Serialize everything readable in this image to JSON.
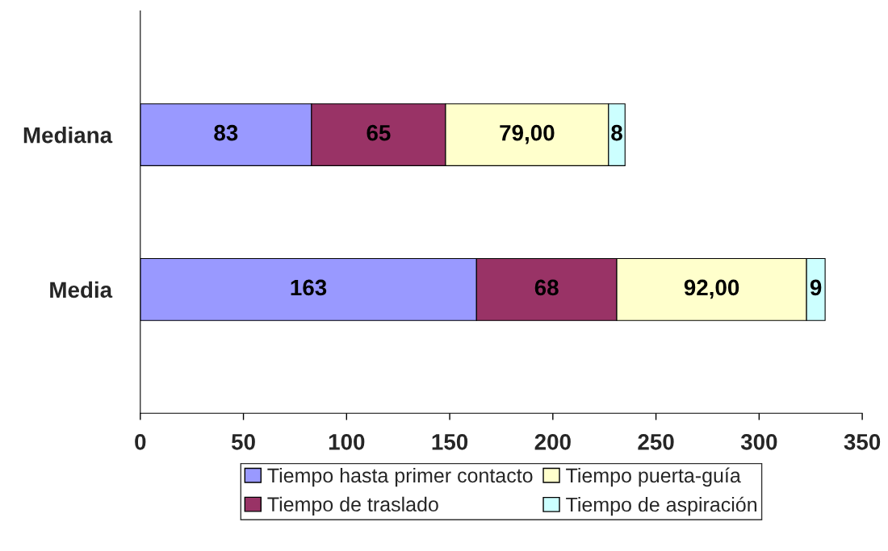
{
  "chart_data": {
    "type": "bar",
    "orientation": "horizontal",
    "stacked": true,
    "categories": [
      "Mediana",
      "Media"
    ],
    "series": [
      {
        "name": "Tiempo hasta primer contacto",
        "color": "#9999ff",
        "values": [
          83,
          163
        ],
        "value_labels": [
          "83",
          "163"
        ]
      },
      {
        "name": "Tiempo de traslado",
        "color": "#993366",
        "values": [
          65,
          68
        ],
        "value_labels": [
          "65",
          "68"
        ]
      },
      {
        "name": "Tiempo puerta-guía",
        "color": "#ffffcc",
        "values": [
          79,
          92
        ],
        "value_labels": [
          "79,00",
          "92,00"
        ]
      },
      {
        "name": "Tiempo de aspiración",
        "color": "#ccffff",
        "values": [
          8,
          9
        ],
        "value_labels": [
          "8",
          "9"
        ]
      }
    ],
    "xlim": [
      0,
      350
    ],
    "xticks": [
      0,
      50,
      100,
      150,
      200,
      250,
      300,
      350
    ],
    "grid": false,
    "legend": "bottom"
  }
}
